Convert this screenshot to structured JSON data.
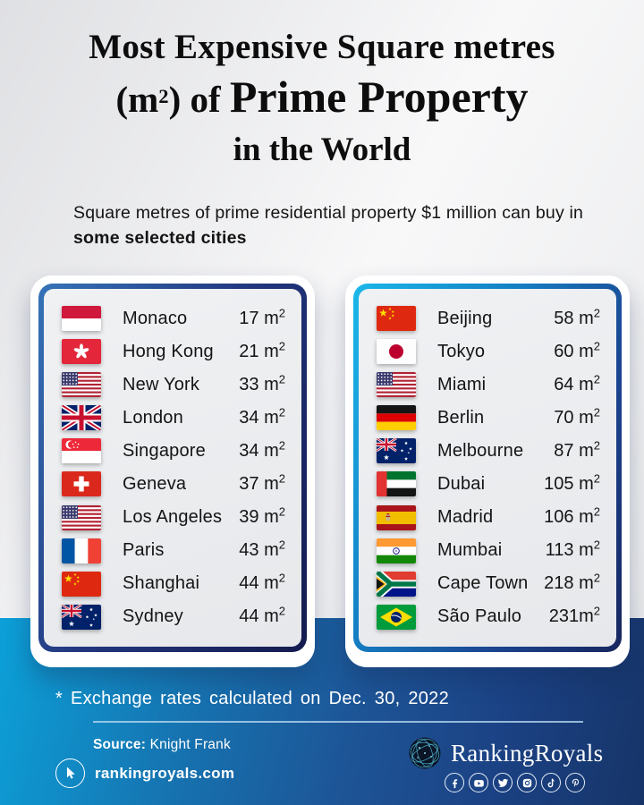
{
  "header": {
    "title_line1": "Most Expensive Square metres",
    "title_line2_pre": "(m",
    "title_line2_sup": "2",
    "title_line2_mid": ") of ",
    "title_line2_emphasis": "Prime Property",
    "title_line3": "in the World"
  },
  "subtitle": {
    "normal": "Square metres of prime residential property $1 million can buy in ",
    "bold": "some selected cities"
  },
  "panels": {
    "left": {
      "rows": [
        {
          "flag": "mc",
          "city": "Monaco",
          "value": "17 m²"
        },
        {
          "flag": "hk",
          "city": "Hong Kong",
          "value": "21 m²"
        },
        {
          "flag": "us",
          "city": "New York",
          "value": "33 m²"
        },
        {
          "flag": "gb",
          "city": "London",
          "value": "34 m²"
        },
        {
          "flag": "sg",
          "city": "Singapore",
          "value": "34 m²"
        },
        {
          "flag": "ch",
          "city": "Geneva",
          "value": "37 m²"
        },
        {
          "flag": "us",
          "city": "Los Angeles",
          "value": "39 m²"
        },
        {
          "flag": "fr",
          "city": "Paris",
          "value": "43 m²"
        },
        {
          "flag": "cn",
          "city": "Shanghai",
          "value": "44 m²"
        },
        {
          "flag": "au",
          "city": "Sydney",
          "value": "44 m²"
        }
      ]
    },
    "right": {
      "rows": [
        {
          "flag": "cn",
          "city": "Beijing",
          "value": "58 m²"
        },
        {
          "flag": "jp",
          "city": "Tokyo",
          "value": "60 m²"
        },
        {
          "flag": "us",
          "city": "Miami",
          "value": "64 m²"
        },
        {
          "flag": "de",
          "city": "Berlin",
          "value": "70 m²"
        },
        {
          "flag": "au",
          "city": "Melbourne",
          "value": "87 m²"
        },
        {
          "flag": "ae",
          "city": "Dubai",
          "value": "105 m²"
        },
        {
          "flag": "es",
          "city": "Madrid",
          "value": "106 m²"
        },
        {
          "flag": "in",
          "city": "Mumbai",
          "value": "113 m²"
        },
        {
          "flag": "za",
          "city": "Cape Town",
          "value": "218 m²"
        },
        {
          "flag": "br",
          "city": "São Paulo",
          "value": "231m²"
        }
      ]
    }
  },
  "footer": {
    "note": "* Exchange rates calculated on Dec. 30, 2022",
    "source_label": "Source:",
    "source_value": "Knight Frank",
    "website": "rankingroyals.com",
    "website_icon": "cursor-arrow-icon",
    "brand": "RankingRoyals",
    "logo_icon": "globe-icon",
    "social_icons": [
      "facebook-icon",
      "youtube-icon",
      "twitter-icon",
      "instagram-icon",
      "tiktok-icon",
      "pinterest-icon"
    ]
  },
  "colors": {
    "footer_gradient_start": "#0ca0d8",
    "footer_gradient_end": "#163468",
    "left_panel_border_start": "#3673b8",
    "left_panel_border_end": "#141b4f",
    "right_panel_border_start": "#1cb8ea",
    "right_panel_border_end": "#17265e",
    "panel_background": "#e9ebee",
    "page_background": "#ededee",
    "text_dark": "#141414",
    "text_light": "#ffffff"
  },
  "chart_data": {
    "type": "table",
    "title": "Most Expensive Square metres (m²) of Prime Property in the World",
    "subtitle": "Square metres of prime residential property $1 million can buy in some selected cities",
    "unit": "m² per $1 million",
    "note": "* Exchange rates calculated on Dec. 30, 2022",
    "source": "Knight Frank",
    "categories": [
      "Monaco",
      "Hong Kong",
      "New York",
      "London",
      "Singapore",
      "Geneva",
      "Los Angeles",
      "Paris",
      "Shanghai",
      "Sydney",
      "Beijing",
      "Tokyo",
      "Miami",
      "Berlin",
      "Melbourne",
      "Dubai",
      "Madrid",
      "Mumbai",
      "Cape Town",
      "São Paulo"
    ],
    "values": [
      17,
      21,
      33,
      34,
      34,
      37,
      39,
      43,
      44,
      44,
      58,
      60,
      64,
      70,
      87,
      105,
      106,
      113,
      218,
      231
    ]
  }
}
